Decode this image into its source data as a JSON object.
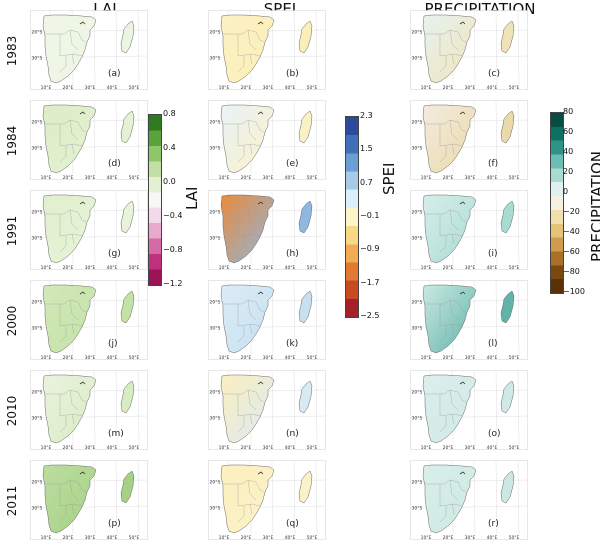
{
  "columns": {
    "lai": "LAI",
    "spei": "SPEI",
    "precip": "PRECIPITATION"
  },
  "years": [
    "1983",
    "1984",
    "1991",
    "2000",
    "2010",
    "2011"
  ],
  "panel_labels": [
    [
      "(a)",
      "(b)",
      "(c)"
    ],
    [
      "(d)",
      "(e)",
      "(f)"
    ],
    [
      "(g)",
      "(h)",
      "(i)"
    ],
    [
      "(j)",
      "(k)",
      "(l)"
    ],
    [
      "(m)",
      "(n)",
      "(o)"
    ],
    [
      "(p)",
      "(q)",
      "(r)"
    ]
  ],
  "lon_ticks": [
    "10°E",
    "20°E",
    "30°E",
    "40°E",
    "50°E"
  ],
  "lat_ticks": [
    "20°S",
    "30°S"
  ],
  "colorbars": {
    "lai": {
      "title": "LAI",
      "ticks": [
        "0.8",
        "0.4",
        "0.0",
        "−0.4",
        "−0.8",
        "−1.2"
      ],
      "colors": [
        "#2d7a1f",
        "#5aa33a",
        "#8fc66a",
        "#c2e0a4",
        "#e3f0d3",
        "#f7f7f5",
        "#f4d9ec",
        "#e9a9cf",
        "#d66aa8",
        "#c0307c",
        "#9a1456"
      ]
    },
    "spei": {
      "title": "SPEI",
      "ticks": [
        "2.3",
        "1.5",
        "0.7",
        "−0.1",
        "−0.9",
        "−1.7",
        "−2.5"
      ],
      "colors": [
        "#2b4a9b",
        "#3f6fb8",
        "#6a9fd2",
        "#a6cbe8",
        "#dceefa",
        "#fbf6c9",
        "#f7d885",
        "#f2ad52",
        "#e37a32",
        "#c94a22",
        "#a5212a"
      ]
    },
    "precip": {
      "title": "PRECIPITATION",
      "ticks": [
        "80",
        "60",
        "40",
        "20",
        "0",
        "−20",
        "−40",
        "−60",
        "−80",
        "−100"
      ],
      "colors": [
        "#064e43",
        "#0e6f63",
        "#2e9489",
        "#6cbdb3",
        "#a9dbd3",
        "#dff2ef",
        "#f6f1e3",
        "#f1dfae",
        "#e4c479",
        "#cf9e4c",
        "#a9702a",
        "#7a4910",
        "#5a3205"
      ]
    }
  },
  "map_colors": {
    "lai": [
      [
        "#f0f6e8",
        "#ecf5e2"
      ],
      [
        "#dcedc6",
        "#e4f1d3"
      ],
      [
        "#e0efcc",
        "#e8f3d9"
      ],
      [
        "#d2e8b9",
        "#c4e2a6"
      ],
      [
        "#eaf3df",
        "#d8ecc2"
      ],
      [
        "#bcdda0",
        "#a6d185"
      ]
    ],
    "spei": [
      [
        "#fcf1c2",
        "#fbefb9"
      ],
      [
        "#e9f3f8",
        "#fbf1c7"
      ],
      [
        "#e98a3c",
        "#8fb8de"
      ],
      [
        "#dcecf6",
        "#c6e0f1"
      ],
      [
        "#fcefbf",
        "#d9eaf5"
      ],
      [
        "#fcefbf",
        "#fbf2c9"
      ]
    ],
    "precip": [
      [
        "#e6f3f0",
        "#f1e3b8"
      ],
      [
        "#f2ece0",
        "#ecd9a9"
      ],
      [
        "#d7eeea",
        "#a9dbd3"
      ],
      [
        "#cbe9e3",
        "#5fb3a8"
      ],
      [
        "#dcefec",
        "#cfe9e4"
      ],
      [
        "#d9efea",
        "#cde8e2"
      ]
    ]
  }
}
